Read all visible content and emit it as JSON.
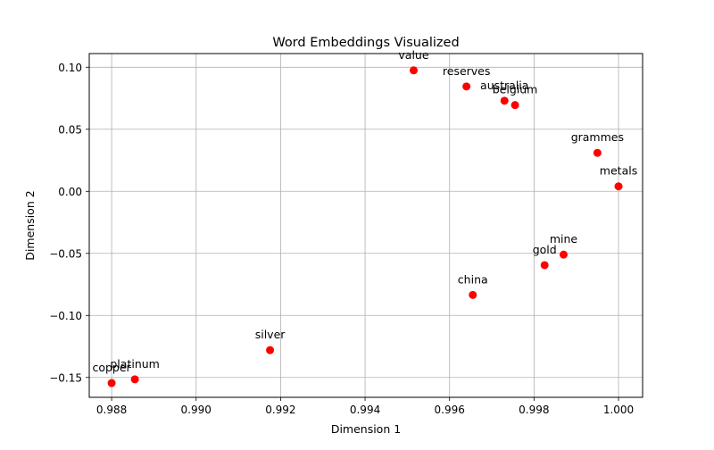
{
  "chart_data": {
    "type": "scatter",
    "title": "Word Embeddings Visualized",
    "xlabel": "Dimension 1",
    "ylabel": "Dimension 2",
    "xlim": [
      0.98747,
      1.00057
    ],
    "ylim": [
      -0.166,
      0.111
    ],
    "xticks": [
      0.988,
      0.99,
      0.992,
      0.994,
      0.996,
      0.998,
      1.0
    ],
    "xtick_labels": [
      "0.988",
      "0.990",
      "0.992",
      "0.994",
      "0.996",
      "0.998",
      "1.000"
    ],
    "yticks": [
      -0.15,
      -0.1,
      -0.05,
      0.0,
      0.05,
      0.1
    ],
    "ytick_labels": [
      "−0.15",
      "−0.10",
      "−0.05",
      "0.00",
      "0.05",
      "0.10"
    ],
    "grid": true,
    "marker_color": "#ff0000",
    "points": [
      {
        "label": "value",
        "x": 0.99515,
        "y": 0.0975
      },
      {
        "label": "reserves",
        "x": 0.9964,
        "y": 0.0845
      },
      {
        "label": "australia",
        "x": 0.9973,
        "y": 0.073
      },
      {
        "label": "belgium",
        "x": 0.99755,
        "y": 0.0695
      },
      {
        "label": "grammes",
        "x": 0.9995,
        "y": 0.031
      },
      {
        "label": "metals",
        "x": 1.0,
        "y": 0.004
      },
      {
        "label": "mine",
        "x": 0.9987,
        "y": -0.051
      },
      {
        "label": "gold",
        "x": 0.99825,
        "y": -0.0595
      },
      {
        "label": "china",
        "x": 0.99655,
        "y": -0.0835
      },
      {
        "label": "silver",
        "x": 0.99175,
        "y": -0.128
      },
      {
        "label": "platinum",
        "x": 0.98855,
        "y": -0.1515
      },
      {
        "label": "copper",
        "x": 0.988,
        "y": -0.1545
      }
    ]
  }
}
